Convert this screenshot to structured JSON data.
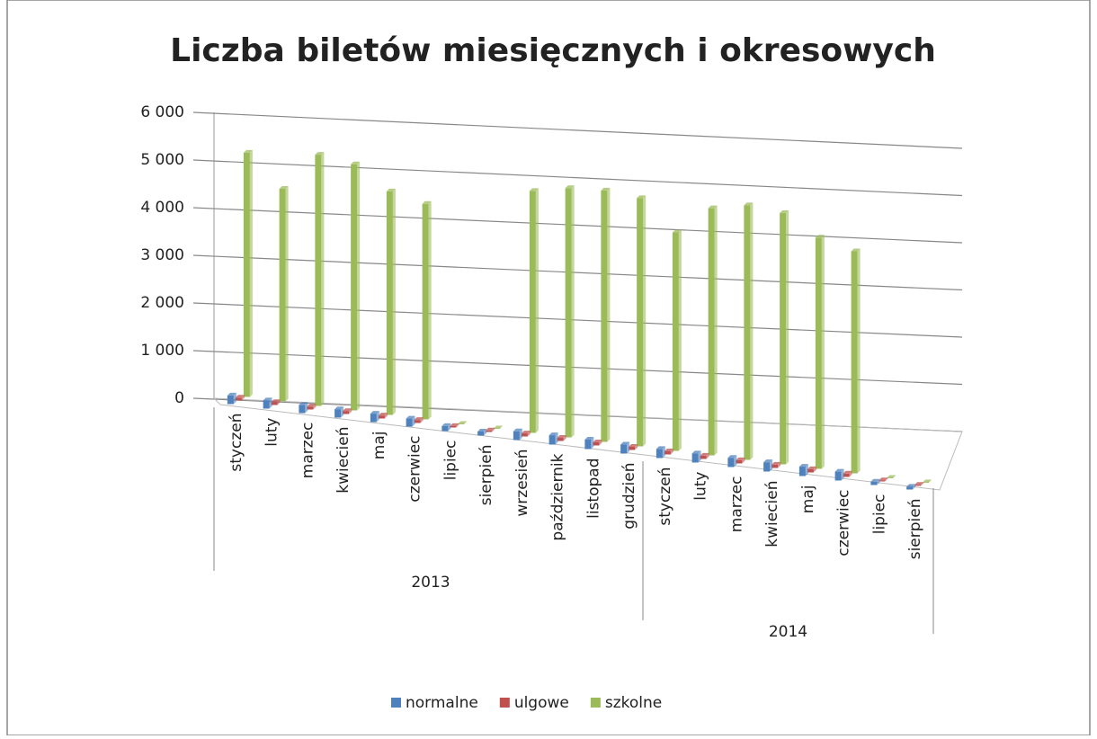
{
  "chart_data": {
    "type": "bar3d",
    "title": "Liczba biletów miesięcznych i okresowych",
    "categories": [
      "styczeń",
      "luty",
      "marzec",
      "kwiecień",
      "maj",
      "czerwiec",
      "lipiec",
      "sierpień",
      "wrzesień",
      "październik",
      "listopad",
      "grudzień",
      "styczeń",
      "luty",
      "marzec",
      "kwiecień",
      "maj",
      "czerwiec",
      "lipiec",
      "sierpień"
    ],
    "groups": [
      {
        "label": "2013",
        "count": 12
      },
      {
        "label": "2014",
        "count": 8
      }
    ],
    "series": [
      {
        "name": "normalne",
        "color": "#4f81bd",
        "values": [
          180,
          170,
          170,
          170,
          170,
          160,
          100,
          80,
          170,
          180,
          180,
          170,
          170,
          170,
          170,
          170,
          170,
          160,
          60,
          50
        ]
      },
      {
        "name": "ulgowe",
        "color": "#c0504d",
        "values": [
          60,
          60,
          60,
          60,
          60,
          60,
          30,
          30,
          60,
          60,
          60,
          60,
          60,
          60,
          60,
          60,
          60,
          60,
          20,
          20
        ]
      },
      {
        "name": "szkolne",
        "color": "#9bbb59",
        "values": [
          5100,
          4400,
          5150,
          5000,
          4500,
          4300,
          0,
          0,
          4700,
          4800,
          4800,
          4700,
          4100,
          4600,
          4700,
          4600,
          4200,
          4000,
          0,
          0
        ]
      }
    ],
    "ylim": [
      0,
      6000
    ],
    "yticks": [
      {
        "value": 0,
        "label": "0"
      },
      {
        "value": 1000,
        "label": "1 000"
      },
      {
        "value": 2000,
        "label": "2 000"
      },
      {
        "value": 3000,
        "label": "3 000"
      },
      {
        "value": 4000,
        "label": "4 000"
      },
      {
        "value": 5000,
        "label": "5 000"
      },
      {
        "value": 6000,
        "label": "6 000"
      }
    ],
    "grid": true,
    "legend": "bottom"
  }
}
